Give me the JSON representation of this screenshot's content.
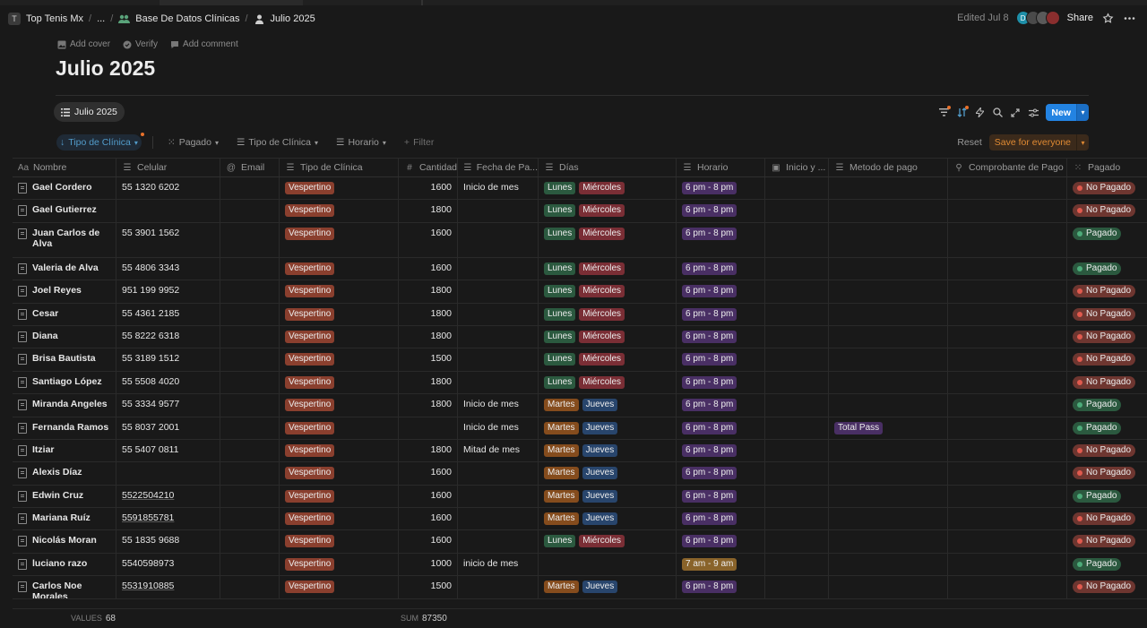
{
  "breadcrumbs": {
    "workspace_initial": "T",
    "workspace": "Top Tenis Mx",
    "ellipsis": "...",
    "database": "Base De Datos Clínicas",
    "page": "Julio 2025"
  },
  "topbar": {
    "edited": "Edited Jul 8",
    "avatar_initial": "D",
    "share": "Share"
  },
  "page_actions": {
    "add_cover": "Add cover",
    "verify": "Verify",
    "add_comment": "Add comment"
  },
  "title": "Julio 2025",
  "view": {
    "tab_label": "Julio 2025",
    "new_label": "New"
  },
  "filters": {
    "tipo": "Tipo de Clínica",
    "pagado": "Pagado",
    "tipo2": "Tipo de Clínica",
    "horario": "Horario",
    "filter": "Filter",
    "reset": "Reset",
    "save": "Save for everyone"
  },
  "columns": {
    "nombre": "Nombre",
    "celular": "Celular",
    "email": "Email",
    "tipo": "Tipo de Clínica",
    "cantidad": "Cantidad",
    "fecha": "Fecha de Pa...",
    "dias": "Días",
    "horario": "Horario",
    "inicio": "Inicio y ...",
    "metodo": "Metodo de pago",
    "comprobante": "Comprobante de Pago",
    "pagado": "Pagado"
  },
  "colors": {
    "vespertino": "#8a3f2e",
    "lunes": "#2b593f",
    "miercoles": "#7a2e35",
    "martes": "#854c1d",
    "jueves": "#28456c",
    "horario_pm": "#492f64",
    "horario_am": "#89632a",
    "total_pass": "#492f64",
    "pagado": "#2b593f",
    "no_pagado": "#6e3630"
  },
  "rows": [
    {
      "nombre": "Gael Cordero",
      "celular": "55 1320 6202",
      "tipo": "Vespertino",
      "cantidad": "1600",
      "fecha": "Inicio de mes",
      "dias": [
        "Lunes",
        "Miércoles"
      ],
      "horario": "6 pm - 8 pm",
      "metodo": "",
      "pagado": "No Pagado"
    },
    {
      "nombre": "Gael Gutierrez",
      "celular": "",
      "tipo": "Vespertino",
      "cantidad": "1800",
      "fecha": "",
      "dias": [
        "Lunes",
        "Miércoles"
      ],
      "horario": "6 pm - 8 pm",
      "metodo": "",
      "pagado": "No Pagado"
    },
    {
      "nombre": "Juan Carlos de Alva",
      "celular": "55 3901 1562",
      "tipo": "Vespertino",
      "cantidad": "1600",
      "fecha": "",
      "dias": [
        "Lunes",
        "Miércoles"
      ],
      "horario": "6 pm - 8 pm",
      "metodo": "",
      "pagado": "Pagado"
    },
    {
      "nombre": "Valeria de Alva",
      "celular": "55 4806 3343",
      "tipo": "Vespertino",
      "cantidad": "1600",
      "fecha": "",
      "dias": [
        "Lunes",
        "Miércoles"
      ],
      "horario": "6 pm - 8 pm",
      "metodo": "",
      "pagado": "Pagado"
    },
    {
      "nombre": "Joel Reyes",
      "celular": "951 199 9952",
      "tipo": "Vespertino",
      "cantidad": "1800",
      "fecha": "",
      "dias": [
        "Lunes",
        "Miércoles"
      ],
      "horario": "6 pm - 8 pm",
      "metodo": "",
      "pagado": "No Pagado"
    },
    {
      "nombre": "Cesar",
      "celular": "55 4361 2185",
      "tipo": "Vespertino",
      "cantidad": "1800",
      "fecha": "",
      "dias": [
        "Lunes",
        "Miércoles"
      ],
      "horario": "6 pm - 8 pm",
      "metodo": "",
      "pagado": "No Pagado"
    },
    {
      "nombre": "Diana",
      "celular": "55 8222 6318",
      "tipo": "Vespertino",
      "cantidad": "1800",
      "fecha": "",
      "dias": [
        "Lunes",
        "Miércoles"
      ],
      "horario": "6 pm - 8 pm",
      "metodo": "",
      "pagado": "No Pagado"
    },
    {
      "nombre": "Brisa Bautista",
      "celular": "55 3189 1512",
      "tipo": "Vespertino",
      "cantidad": "1500",
      "fecha": "",
      "dias": [
        "Lunes",
        "Miércoles"
      ],
      "horario": "6 pm - 8 pm",
      "metodo": "",
      "pagado": "No Pagado"
    },
    {
      "nombre": "Santiago López",
      "celular": "55 5508 4020",
      "tipo": "Vespertino",
      "cantidad": "1800",
      "fecha": "",
      "dias": [
        "Lunes",
        "Miércoles"
      ],
      "horario": "6 pm - 8 pm",
      "metodo": "",
      "pagado": "No Pagado"
    },
    {
      "nombre": "Miranda Angeles",
      "celular": "55 3334 9577",
      "tipo": "Vespertino",
      "cantidad": "1800",
      "fecha": "Inicio de mes",
      "dias": [
        "Martes",
        "Jueves"
      ],
      "horario": "6 pm - 8 pm",
      "metodo": "",
      "pagado": "Pagado"
    },
    {
      "nombre": "Fernanda Ramos",
      "celular": "55 8037 2001",
      "tipo": "Vespertino",
      "cantidad": "",
      "fecha": "Inicio de mes",
      "dias": [
        "Martes",
        "Jueves"
      ],
      "horario": "6 pm - 8 pm",
      "metodo": "Total Pass",
      "pagado": "Pagado"
    },
    {
      "nombre": "Itziar",
      "celular": "55 5407 0811",
      "tipo": "Vespertino",
      "cantidad": "1800",
      "fecha": "Mitad de mes",
      "dias": [
        "Martes",
        "Jueves"
      ],
      "horario": "6 pm - 8 pm",
      "metodo": "",
      "pagado": "No Pagado"
    },
    {
      "nombre": "Alexis Díaz",
      "celular": "",
      "tipo": "Vespertino",
      "cantidad": "1600",
      "fecha": "",
      "dias": [
        "Martes",
        "Jueves"
      ],
      "horario": "6 pm - 8 pm",
      "metodo": "",
      "pagado": "No Pagado"
    },
    {
      "nombre": "Edwin Cruz",
      "celular": "5522504210",
      "celular_link": true,
      "tipo": "Vespertino",
      "cantidad": "1600",
      "fecha": "",
      "dias": [
        "Martes",
        "Jueves"
      ],
      "horario": "6 pm - 8 pm",
      "metodo": "",
      "pagado": "Pagado"
    },
    {
      "nombre": "Mariana Ruíz",
      "celular": "5591855781",
      "celular_link": true,
      "tipo": "Vespertino",
      "cantidad": "1600",
      "fecha": "",
      "dias": [
        "Martes",
        "Jueves"
      ],
      "horario": "6 pm - 8 pm",
      "metodo": "",
      "pagado": "No Pagado"
    },
    {
      "nombre": "Nicolás Moran",
      "celular": "55 1835 9688",
      "tipo": "Vespertino",
      "cantidad": "1600",
      "fecha": "",
      "dias": [
        "Lunes",
        "Miércoles"
      ],
      "horario": "6 pm - 8 pm",
      "metodo": "",
      "pagado": "No Pagado"
    },
    {
      "nombre": "luciano razo",
      "celular": "5540598973",
      "tipo": "Vespertino",
      "cantidad": "1000",
      "fecha": "inicio de mes",
      "dias": [],
      "horario": "7 am - 9 am",
      "metodo": "",
      "pagado": "Pagado"
    },
    {
      "nombre": "Carlos Noe Morales",
      "celular": "5531910885",
      "celular_link": true,
      "tipo": "Vespertino",
      "cantidad": "1500",
      "fecha": "",
      "dias": [
        "Martes",
        "Jueves"
      ],
      "horario": "6 pm - 8 pm",
      "metodo": "",
      "pagado": "No Pagado"
    }
  ],
  "footer": {
    "values_label": "VALUES",
    "values_count": "68",
    "sum_label": "SUM",
    "sum_value": "87350"
  }
}
